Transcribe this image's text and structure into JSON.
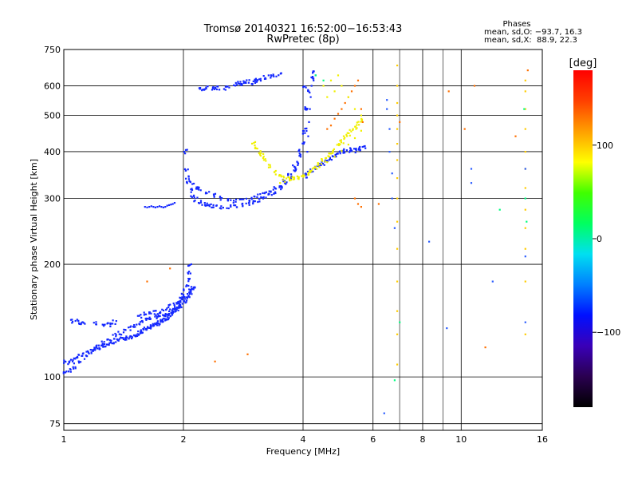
{
  "chart_data": {
    "type": "scatter",
    "title": "Tromsø 20140321 16:52:00−16:53:43",
    "subtitle": "RwPretec (8p)",
    "xlabel": "Frequency [MHz]",
    "ylabel": "Stationary phase Virtual Height [km]",
    "x_scale": "log",
    "y_scale": "log",
    "xlim": [
      1,
      16
    ],
    "ylim": [
      72,
      750
    ],
    "x_ticks": [
      1,
      2,
      4,
      6,
      8,
      10,
      16
    ],
    "x_tick_labels": [
      "1",
      "2",
      "4",
      "6",
      "8",
      "10",
      "16"
    ],
    "y_ticks": [
      75,
      100,
      200,
      300,
      400,
      500,
      600,
      750
    ],
    "y_tick_labels": [
      "75",
      "100",
      "200",
      "300",
      "400",
      "500",
      "600",
      "750"
    ],
    "grid": true,
    "stats": {
      "heading": "Phases",
      "line1": "mean, sd,O: −93.7, 16.3",
      "line2": "mean, sd,X:  88.9, 22.3"
    },
    "colorbar": {
      "label": "[deg]",
      "range": [
        -180,
        180
      ],
      "ticks": [
        100,
        0,
        -100
      ],
      "tick_labels": [
        "100",
        "0",
        "−100"
      ],
      "colors": [
        "#000000",
        "#2a0050",
        "#3a00b8",
        "#0010ff",
        "#0080ff",
        "#00e0f0",
        "#00ff60",
        "#40ff00",
        "#ffff00",
        "#ffa000",
        "#ff4000",
        "#ff0000"
      ]
    },
    "color_scale": [
      {
        "phase": -100,
        "color": "#1428ff"
      },
      {
        "phase": -90,
        "color": "#2a5cff"
      },
      {
        "phase": 30,
        "color": "#00ff80"
      },
      {
        "phase": 60,
        "color": "#a0ff00"
      },
      {
        "phase": 95,
        "color": "#f0f000"
      },
      {
        "phase": 110,
        "color": "#ffcc00"
      },
      {
        "phase": 140,
        "color": "#ff7000"
      },
      {
        "phase": 170,
        "color": "#ff1a00"
      }
    ],
    "series": [
      {
        "phase": -100,
        "x": [
          1.01,
          1.03,
          1.05,
          1.07,
          1.09,
          1.12,
          1.15,
          1.18,
          1.2,
          1.22,
          1.25,
          1.28,
          1.3,
          1.33,
          1.35,
          1.38,
          1.4,
          1.43,
          1.45,
          1.48,
          1.5,
          1.52,
          1.54,
          1.56,
          1.58,
          1.6,
          1.62,
          1.64,
          1.66,
          1.68,
          1.7,
          1.72,
          1.74,
          1.76,
          1.78,
          1.8,
          1.82,
          1.84,
          1.86,
          1.88,
          1.9,
          1.92,
          1.94,
          1.96,
          1.98,
          2.0,
          2.02,
          2.04,
          2.06,
          2.07,
          2.08
        ],
        "y": [
          110,
          109,
          110,
          112,
          114,
          115,
          116,
          118,
          119,
          120,
          121,
          122,
          123,
          124,
          125,
          125,
          126,
          127,
          127,
          128,
          129,
          130,
          131,
          132,
          133,
          134,
          135,
          135,
          136,
          137,
          138,
          139,
          140,
          141,
          142,
          143,
          144,
          145,
          147,
          148,
          150,
          152,
          155,
          158,
          162,
          166,
          170,
          176,
          182,
          190,
          198
        ]
      },
      {
        "phase": -100,
        "x": [
          1.01,
          1.03,
          1.06,
          1.1,
          1.14,
          1.18,
          1.22,
          1.26,
          1.3,
          1.34,
          1.38,
          1.42,
          1.46,
          1.5,
          1.54,
          1.58,
          1.62,
          1.66,
          1.7,
          1.74,
          1.78,
          1.82,
          1.86,
          1.9,
          1.94,
          1.98,
          2.02,
          2.05,
          2.08
        ],
        "y": [
          103,
          104,
          106,
          110,
          113,
          117,
          120,
          123,
          126,
          129,
          131,
          133,
          135,
          137,
          139,
          140,
          142,
          143,
          145,
          146,
          147,
          148,
          150,
          151,
          153,
          155,
          158,
          162,
          170
        ]
      },
      {
        "phase": -100,
        "x": [
          1.05,
          1.08,
          1.1,
          1.12,
          1.2,
          1.25,
          1.28,
          1.31,
          1.34,
          1.55,
          1.6,
          1.65,
          1.7,
          1.75,
          1.8,
          1.85,
          1.9,
          1.95,
          2.0,
          2.05,
          2.08,
          2.1,
          2.12
        ],
        "y": [
          141,
          142,
          140,
          139,
          139,
          137,
          139,
          138,
          140,
          145,
          147,
          148,
          149,
          150,
          152,
          155,
          156,
          158,
          162,
          165,
          168,
          172,
          175
        ]
      },
      {
        "phase": -100,
        "x": [
          1.6,
          1.62,
          1.64,
          1.66,
          1.68,
          1.7,
          1.72,
          1.74,
          1.76,
          1.78,
          1.8,
          1.82,
          1.84,
          1.86,
          1.88,
          1.9
        ],
        "y": [
          285,
          284,
          285,
          286,
          285,
          284,
          285,
          286,
          285,
          284,
          285,
          287,
          288,
          289,
          290,
          292
        ]
      },
      {
        "phase": -100,
        "x": [
          2.02,
          2.04,
          2.06,
          2.08,
          2.1,
          2.15,
          2.2,
          2.25,
          2.3,
          2.35,
          2.4,
          2.5,
          2.6,
          2.7,
          2.8,
          2.9,
          3.0,
          3.1,
          3.2,
          3.3,
          3.4,
          3.5,
          3.6,
          3.7,
          3.8,
          3.9,
          4.0,
          4.02,
          4.04
        ],
        "y": [
          400,
          360,
          330,
          315,
          305,
          298,
          294,
          290,
          288,
          286,
          285,
          284,
          285,
          286,
          288,
          290,
          293,
          296,
          300,
          305,
          312,
          320,
          330,
          345,
          365,
          400,
          450,
          520,
          600
        ]
      },
      {
        "phase": -100,
        "x": [
          2.05,
          2.1,
          2.15,
          2.2,
          2.3,
          2.4,
          2.5,
          2.6,
          2.7,
          2.8,
          2.9,
          3.0,
          3.1,
          3.2,
          3.3,
          3.4,
          3.5,
          3.6,
          3.7,
          3.8,
          3.9,
          3.95,
          4.0,
          4.05,
          4.1,
          4.15,
          4.2,
          4.25
        ],
        "y": [
          340,
          330,
          322,
          318,
          312,
          306,
          300,
          297,
          295,
          296,
          298,
          301,
          305,
          308,
          312,
          318,
          325,
          333,
          342,
          355,
          372,
          390,
          420,
          460,
          520,
          580,
          630,
          650
        ]
      },
      {
        "phase": -100,
        "x": [
          2.2,
          2.25,
          2.3,
          2.35,
          2.4,
          2.45,
          2.55,
          2.6,
          2.7,
          2.75,
          2.8,
          2.85,
          2.9,
          2.95,
          3.0,
          3.05,
          3.1,
          3.2,
          3.3,
          3.4,
          3.5
        ],
        "y": [
          590,
          585,
          595,
          590,
          588,
          593,
          590,
          600,
          605,
          608,
          602,
          610,
          615,
          605,
          618,
          620,
          625,
          630,
          635,
          640,
          645
        ]
      },
      {
        "phase": -100,
        "x": [
          4.05,
          4.1,
          4.2,
          4.3,
          4.4,
          4.5,
          4.6,
          4.7,
          4.8,
          4.9,
          5.0,
          5.1,
          5.2,
          5.3,
          5.4,
          5.5,
          5.6,
          5.7
        ],
        "y": [
          345,
          350,
          355,
          362,
          368,
          372,
          378,
          385,
          392,
          398,
          400,
          402,
          404,
          405,
          403,
          406,
          408,
          410
        ]
      },
      {
        "phase": -100,
        "x": [
          4.1,
          4.12,
          4.14,
          4.16,
          4.18,
          4.2,
          4.22,
          4.25,
          4.3
        ],
        "y": [
          400,
          440,
          480,
          520,
          560,
          600,
          630,
          620,
          640
        ]
      },
      {
        "phase": 95,
        "x": [
          3.0,
          3.05,
          3.1,
          3.15,
          3.2,
          3.3,
          3.4,
          3.5,
          3.6,
          3.7,
          3.8,
          3.9,
          4.0,
          4.1,
          4.2,
          4.3,
          4.4,
          4.5,
          4.6,
          4.7,
          4.8,
          4.9,
          5.0,
          5.1,
          5.2,
          5.3,
          5.4,
          5.5,
          5.6
        ],
        "y": [
          420,
          410,
          400,
          390,
          380,
          365,
          352,
          345,
          340,
          338,
          339,
          342,
          345,
          350,
          356,
          362,
          370,
          378,
          386,
          395,
          405,
          415,
          425,
          435,
          445,
          455,
          465,
          475,
          485
        ]
      },
      {
        "phase": 95,
        "x": [
          3.5,
          3.6,
          3.7,
          3.8,
          3.9,
          4.0,
          4.2,
          4.4,
          4.6,
          4.8,
          5.0,
          5.2,
          5.4,
          5.6
        ],
        "y": [
          330,
          332,
          335,
          338,
          342,
          346,
          355,
          364,
          375,
          388,
          402,
          418,
          435,
          455
        ]
      },
      {
        "phase": 140,
        "x": [
          4.6,
          4.7,
          4.8,
          4.9,
          5.0,
          5.1,
          5.2,
          5.3,
          5.4,
          5.5,
          5.6,
          5.65
        ],
        "y": [
          460,
          470,
          490,
          505,
          520,
          540,
          560,
          580,
          600,
          620,
          520,
          480
        ]
      },
      {
        "phase": 95,
        "x": [
          4.5,
          4.6,
          4.7,
          4.8,
          4.9,
          5.0,
          5.2,
          5.4,
          5.6
        ],
        "y": [
          600,
          560,
          620,
          580,
          640,
          600,
          560,
          520,
          500
        ]
      },
      {
        "phase": 110,
        "x": [
          6.9,
          6.9,
          6.9,
          6.9,
          6.9,
          6.9,
          6.9,
          6.9,
          6.9,
          6.9,
          6.9,
          6.9,
          6.9,
          6.9,
          6.9
        ],
        "y": [
          680,
          600,
          540,
          500,
          460,
          420,
          380,
          340,
          300,
          260,
          220,
          180,
          150,
          130,
          108
        ]
      },
      {
        "phase": 110,
        "x": [
          14.5,
          14.5,
          14.5,
          14.5,
          14.5,
          14.5,
          14.5,
          14.5,
          14.5,
          14.5,
          14.5,
          14.5
        ],
        "y": [
          620,
          580,
          520,
          460,
          400,
          360,
          320,
          280,
          250,
          220,
          180,
          130
        ]
      },
      {
        "phase": -90,
        "x": [
          6.5,
          6.5,
          6.6,
          6.6,
          6.7,
          6.7,
          6.8,
          8.3,
          9.2,
          10.6,
          10.6,
          12.0,
          14.5,
          14.5,
          14.5,
          6.4
        ],
        "y": [
          550,
          520,
          460,
          400,
          350,
          300,
          250,
          230,
          135,
          360,
          330,
          180,
          360,
          210,
          140,
          80
        ]
      },
      {
        "phase": 140,
        "x": [
          5.4,
          5.5,
          5.6,
          6.2,
          7.0,
          9.3,
          10.2,
          10.8,
          11.5,
          14.7,
          13.7,
          1.62,
          1.85,
          2.4,
          2.9
        ],
        "y": [
          300,
          290,
          285,
          290,
          480,
          580,
          460,
          600,
          120,
          660,
          440,
          180,
          195,
          110,
          115
        ]
      },
      {
        "phase": 30,
        "x": [
          6.8,
          7.0,
          12.5,
          14.4,
          14.6,
          14.5,
          4.3,
          4.5
        ],
        "y": [
          98,
          140,
          280,
          520,
          260,
          300,
          640,
          620
        ]
      }
    ]
  }
}
